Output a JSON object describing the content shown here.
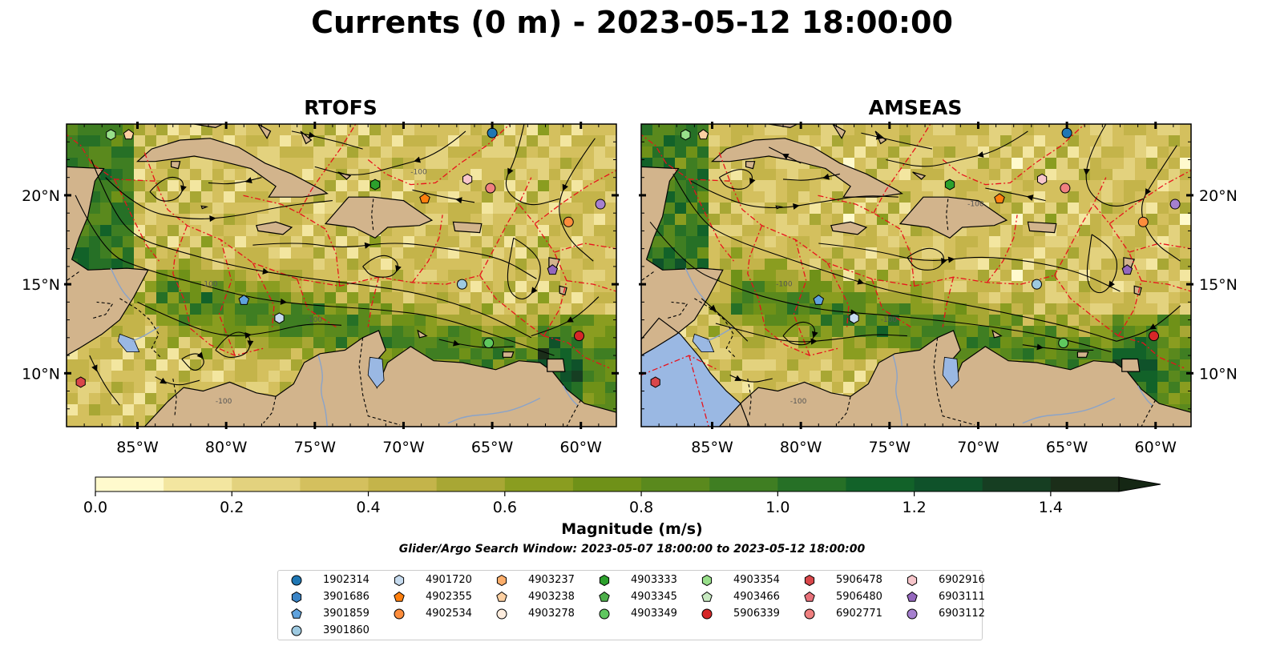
{
  "figure": {
    "title": "Currents (0 m) - 2023-05-12 18:00:00",
    "search_window": "Glider/Argo Search Window: 2023-05-07 18:00:00 to 2023-05-12 18:00:00"
  },
  "map": {
    "lon_range": [
      -89,
      -58
    ],
    "lat_range": [
      7,
      24
    ],
    "xticks": [
      {
        "value": -85,
        "label": "85°W"
      },
      {
        "value": -80,
        "label": "80°W"
      },
      {
        "value": -75,
        "label": "75°W"
      },
      {
        "value": -70,
        "label": "70°W"
      },
      {
        "value": -65,
        "label": "65°W"
      },
      {
        "value": -60,
        "label": "60°W"
      }
    ],
    "yticks": [
      {
        "value": 20,
        "label": "20°N"
      },
      {
        "value": 15,
        "label": "15°N"
      },
      {
        "value": 10,
        "label": "10°N"
      }
    ],
    "contour_label": "-100",
    "colors": {
      "land": "#d2b48c",
      "pacific_water": "#9ab8e3",
      "eez": "#e8121c",
      "border": "#000000",
      "river": "#8aa3c9",
      "streamline": "#000000"
    }
  },
  "panels": [
    {
      "id": "rtofs",
      "title": "RTOFS"
    },
    {
      "id": "amseas",
      "title": "AMSEAS"
    }
  ],
  "colorbar": {
    "label": "Magnitude (m/s)",
    "min": 0.0,
    "max": 1.5,
    "step": 0.1,
    "extend": "max",
    "colors": [
      "#fffacd",
      "#f3e6a0",
      "#e3d27e",
      "#d4c05e",
      "#c4b44a",
      "#a8a734",
      "#8a9d20",
      "#6f9118",
      "#5a891d",
      "#3f7e22",
      "#267026",
      "#126229",
      "#0f522a",
      "#163e22",
      "#1b2e19"
    ],
    "extend_color": "#152714",
    "ticks": [
      {
        "value": 0.0,
        "label": "0.0"
      },
      {
        "value": 0.2,
        "label": "0.2"
      },
      {
        "value": 0.4,
        "label": "0.4"
      },
      {
        "value": 0.6,
        "label": "0.6"
      },
      {
        "value": 0.8,
        "label": "0.8"
      },
      {
        "value": 1.0,
        "label": "1.0"
      },
      {
        "value": 1.2,
        "label": "1.2"
      },
      {
        "value": 1.4,
        "label": "1.4"
      }
    ]
  },
  "legend": {
    "entries": [
      {
        "id": "1902314",
        "marker": "circle",
        "color": "#1f77b4",
        "lon": -65.0,
        "lat": 23.5
      },
      {
        "id": "3901686",
        "marker": "hexagon",
        "color": "#3a84c6",
        "lon": null,
        "lat": null
      },
      {
        "id": "3901859",
        "marker": "pentagon",
        "color": "#5fa2dd",
        "lon": -79.0,
        "lat": 14.1
      },
      {
        "id": "3901860",
        "marker": "circle",
        "color": "#9ecae1",
        "lon": -66.7,
        "lat": 15.0
      },
      {
        "id": "4901720",
        "marker": "hexagon",
        "color": "#c6dbef",
        "lon": -77.0,
        "lat": 13.1
      },
      {
        "id": "4902355",
        "marker": "pentagon",
        "color": "#ff7f0e",
        "lon": -68.8,
        "lat": 19.8
      },
      {
        "id": "4902534",
        "marker": "circle",
        "color": "#fd8d3c",
        "lon": -60.7,
        "lat": 18.5
      },
      {
        "id": "4903237",
        "marker": "hexagon",
        "color": "#fdae6b",
        "lon": null,
        "lat": null
      },
      {
        "id": "4903238",
        "marker": "pentagon",
        "color": "#fdd0a2",
        "lon": -85.5,
        "lat": 23.4
      },
      {
        "id": "4903278",
        "marker": "circle",
        "color": "#feedde",
        "lon": null,
        "lat": null
      },
      {
        "id": "4903333",
        "marker": "hexagon",
        "color": "#2ca02c",
        "lon": -71.6,
        "lat": 20.6
      },
      {
        "id": "4903345",
        "marker": "pentagon",
        "color": "#4daf4a",
        "lon": null,
        "lat": null
      },
      {
        "id": "4903349",
        "marker": "circle",
        "color": "#5fc75f",
        "lon": -65.2,
        "lat": 11.7
      },
      {
        "id": "4903354",
        "marker": "hexagon",
        "color": "#98df8a",
        "lon": -86.5,
        "lat": 23.4
      },
      {
        "id": "4903466",
        "marker": "pentagon",
        "color": "#c7e9c0",
        "lon": null,
        "lat": null
      },
      {
        "id": "5906339",
        "marker": "circle",
        "color": "#d62728",
        "lon": -60.1,
        "lat": 12.1
      },
      {
        "id": "5906478",
        "marker": "hexagon",
        "color": "#d9474a",
        "lon": -88.2,
        "lat": 9.5
      },
      {
        "id": "5906480",
        "marker": "pentagon",
        "color": "#e8717a",
        "lon": null,
        "lat": null
      },
      {
        "id": "6902771",
        "marker": "circle",
        "color": "#f08080",
        "lon": -65.1,
        "lat": 20.4
      },
      {
        "id": "6902916",
        "marker": "hexagon",
        "color": "#f7c6cb",
        "lon": -66.4,
        "lat": 20.9
      },
      {
        "id": "6903111",
        "marker": "pentagon",
        "color": "#9467bd",
        "lon": -61.6,
        "lat": 15.8
      },
      {
        "id": "6903112",
        "marker": "circle",
        "color": "#a680cf",
        "lon": -58.9,
        "lat": 19.5
      }
    ]
  }
}
